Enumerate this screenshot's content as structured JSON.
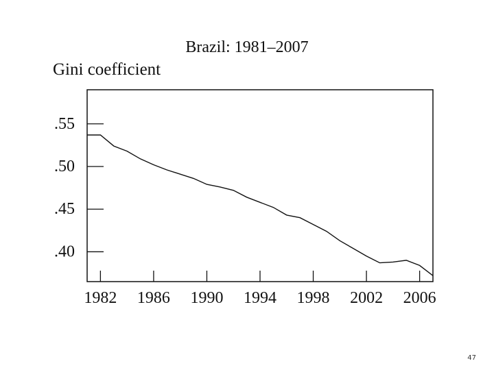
{
  "page": {
    "number": "47"
  },
  "chart_data": {
    "type": "line",
    "title": "Brazil: 1981–2007",
    "xlabel": "",
    "ylabel": "Gini coefficient",
    "xlim": [
      1981,
      2007
    ],
    "ylim": [
      0.365,
      0.59
    ],
    "xticks": [
      1982,
      1986,
      1990,
      1994,
      1998,
      2002,
      2006
    ],
    "xtick_labels": [
      "1982",
      "1986",
      "1990",
      "1994",
      "1998",
      "2002",
      "2006"
    ],
    "yticks": [
      0.4,
      0.45,
      0.5,
      0.55
    ],
    "ytick_labels": [
      ".40",
      ".45",
      ".50",
      ".55"
    ],
    "grid": false,
    "legend": "none",
    "line_color": "#111111",
    "series": [
      {
        "x": [
          1981,
          1982,
          1983,
          1984,
          1985,
          1986,
          1987,
          1988,
          1989,
          1990,
          1991,
          1992,
          1993,
          1994,
          1995,
          1996,
          1997,
          1998,
          1999,
          2000,
          2001,
          2002,
          2003,
          2004,
          2005,
          2006,
          2007
        ],
        "values": [
          0.537,
          0.537,
          0.524,
          0.518,
          0.509,
          0.502,
          0.496,
          0.491,
          0.486,
          0.479,
          0.476,
          0.472,
          0.464,
          0.458,
          0.452,
          0.443,
          0.44,
          0.432,
          0.424,
          0.413,
          0.404,
          0.395,
          0.387,
          0.388,
          0.39,
          0.384,
          0.372
        ]
      }
    ]
  }
}
